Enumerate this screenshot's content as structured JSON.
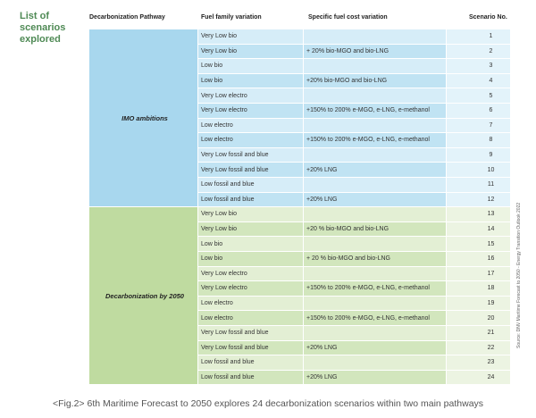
{
  "title": "List of scenarios explored",
  "header": [
    "Decarbonization Pathway",
    "Fuel family variation",
    "Specific fuel cost variation",
    "Scenario No."
  ],
  "sections": [
    {
      "pathway": "IMO ambitions",
      "rows": [
        {
          "fuel": "Very Low bio",
          "cost": null,
          "no": 1
        },
        {
          "fuel": "Very Low bio",
          "cost": "+ 20% bio-MGO and bio-LNG",
          "no": 2
        },
        {
          "fuel": "Low bio",
          "cost": null,
          "no": 3
        },
        {
          "fuel": "Low bio",
          "cost": "+20% bio-MGO and bio-LNG",
          "no": 4
        },
        {
          "fuel": "Very Low electro",
          "cost": null,
          "no": 5
        },
        {
          "fuel": "Very Low electro",
          "cost": "+150% to 200% e-MGO, e-LNG, e-methanol",
          "no": 6
        },
        {
          "fuel": "Low electro",
          "cost": null,
          "no": 7
        },
        {
          "fuel": "Low electro",
          "cost": "+150% to 200% e-MGO, e-LNG, e-methanol",
          "no": 8
        },
        {
          "fuel": "Very Low fossil and blue",
          "cost": null,
          "no": 9
        },
        {
          "fuel": "Very Low fossil and blue",
          "cost": "+20% LNG",
          "no": 10
        },
        {
          "fuel": "Low fossil and blue",
          "cost": null,
          "no": 11
        },
        {
          "fuel": "Low fossil and blue",
          "cost": "+20% LNG",
          "no": 12
        }
      ]
    },
    {
      "pathway": "Decarbonization by 2050",
      "rows": [
        {
          "fuel": "Very Low bio",
          "cost": null,
          "no": 13
        },
        {
          "fuel": "Very Low bio",
          "cost": "+20 % bio-MGO and bio-LNG",
          "no": 14
        },
        {
          "fuel": "Low bio",
          "cost": null,
          "no": 15
        },
        {
          "fuel": "Low bio",
          "cost": "+ 20 % bio-MGO and bio-LNG",
          "no": 16
        },
        {
          "fuel": "Very Low electro",
          "cost": null,
          "no": 17
        },
        {
          "fuel": "Very Low electro",
          "cost": "+150% to 200% e-MGO, e-LNG, e-methanol",
          "no": 18
        },
        {
          "fuel": "Low electro",
          "cost": null,
          "no": 19
        },
        {
          "fuel": "Low electro",
          "cost": "+150% to 200% e-MGO, e-LNG, e-methanol",
          "no": 20
        },
        {
          "fuel": "Very Low fossil and blue",
          "cost": null,
          "no": 21
        },
        {
          "fuel": "Very Low fossil and blue",
          "cost": "+20% LNG",
          "no": 22
        },
        {
          "fuel": "Low fossil and blue",
          "cost": null,
          "no": 23
        },
        {
          "fuel": "Low fossil and blue",
          "cost": "+20% LNG",
          "no": 24
        }
      ]
    }
  ],
  "source": "Source: DNV Maritime Forecast to 2050 - Energy Transition Outlook 2022",
  "caption": "<Fig.2> 6th Maritime Forecast to 2050 explores 24 decarbonization scenarios within two main pathways"
}
